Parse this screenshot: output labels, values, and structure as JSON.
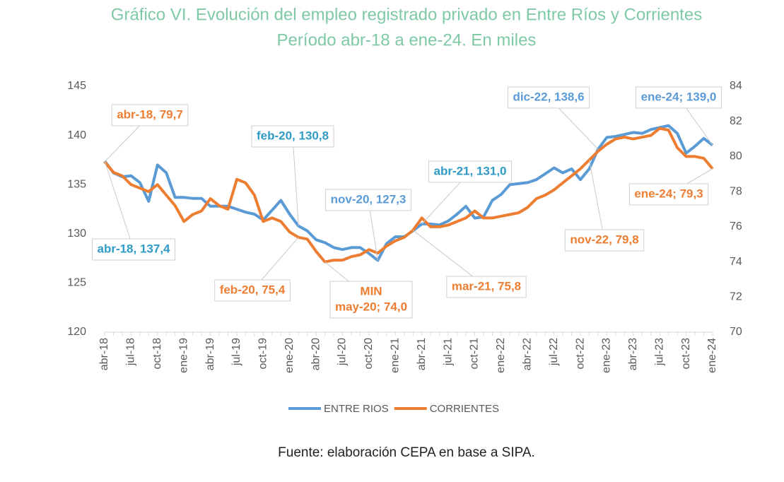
{
  "chart_data": {
    "type": "line",
    "title": "Gráfico VI. Evolución del empleo registrado privado en Entre Ríos y Corrientes",
    "subtitle": "Período abr-18 a ene-24. En miles",
    "source": "Fuente: elaboración CEPA en base a SIPA.",
    "categories": [
      "abr-18",
      null,
      null,
      "jul-18",
      null,
      null,
      "oct-18",
      null,
      null,
      "ene-19",
      null,
      null,
      "abr-19",
      null,
      null,
      "jul-19",
      null,
      null,
      "oct-19",
      null,
      null,
      "ene-20",
      null,
      null,
      "abr-20",
      null,
      null,
      "jul-20",
      null,
      null,
      "oct-20",
      null,
      null,
      "ene-21",
      null,
      null,
      "abr-21",
      null,
      null,
      "jul-21",
      null,
      null,
      "oct-21",
      null,
      null,
      "ene-22",
      null,
      null,
      "abr-22",
      null,
      null,
      "jul-22",
      null,
      null,
      "oct-22",
      null,
      null,
      "ene-23",
      null,
      null,
      "abr-23",
      null,
      null,
      "jul-23",
      null,
      null,
      "oct-23",
      null,
      null,
      "ene-24"
    ],
    "series": [
      {
        "name": "ENTRE RIOS",
        "color": "#5b9bd5",
        "axis": "y",
        "values": [
          137.4,
          136.2,
          135.8,
          135.9,
          135.2,
          133.3,
          137.0,
          136.2,
          133.7,
          133.7,
          133.6,
          133.6,
          132.8,
          132.8,
          132.8,
          132.5,
          132.2,
          132.0,
          131.4,
          132.4,
          133.4,
          132.0,
          130.8,
          130.3,
          129.4,
          129.1,
          128.6,
          128.4,
          128.6,
          128.6,
          128.0,
          127.3,
          129.0,
          129.7,
          129.7,
          130.3,
          131.0,
          131.0,
          130.9,
          131.3,
          132.0,
          132.8,
          131.6,
          131.7,
          133.4,
          134.0,
          135.0,
          135.1,
          135.2,
          135.5,
          136.1,
          136.7,
          136.2,
          136.6,
          135.5,
          136.6,
          138.6,
          139.8,
          139.9,
          140.1,
          140.3,
          140.2,
          140.6,
          140.8,
          141.0,
          140.2,
          138.2,
          138.9,
          139.7,
          139.0
        ]
      },
      {
        "name": "CORRIENTES",
        "color": "#ed7d31",
        "axis": "y2",
        "values": [
          79.7,
          79.1,
          78.9,
          78.4,
          78.2,
          78.0,
          78.4,
          77.8,
          77.2,
          76.3,
          76.7,
          76.9,
          77.6,
          77.2,
          77.0,
          78.7,
          78.5,
          77.8,
          76.3,
          76.5,
          76.3,
          75.7,
          75.4,
          75.3,
          74.6,
          74.0,
          74.1,
          74.1,
          74.3,
          74.4,
          74.7,
          74.5,
          74.9,
          75.2,
          75.4,
          75.8,
          76.5,
          76.0,
          76.0,
          76.1,
          76.3,
          76.5,
          76.9,
          76.5,
          76.5,
          76.6,
          76.7,
          76.8,
          77.1,
          77.6,
          77.8,
          78.1,
          78.5,
          78.9,
          79.3,
          79.8,
          80.3,
          80.7,
          81.0,
          81.1,
          81.0,
          81.1,
          81.2,
          81.6,
          81.5,
          80.5,
          80.0,
          80.0,
          79.9,
          79.3
        ]
      }
    ],
    "ylim": [
      120,
      145
    ],
    "yticks": [
      120,
      125,
      130,
      135,
      140,
      145
    ],
    "y2lim": [
      70,
      84
    ],
    "y2ticks": [
      70,
      72,
      74,
      76,
      78,
      80,
      82,
      84
    ],
    "grid": false,
    "legend": "bottom",
    "annotations": [
      {
        "lines": [
          "abr-18, 79,7"
        ],
        "color": "#ed7d31"
      },
      {
        "lines": [
          "abr-18, 137,4"
        ],
        "color": "#2e9bc6"
      },
      {
        "lines": [
          "feb-20, 130,8"
        ],
        "color": "#2e9bc6"
      },
      {
        "lines": [
          "feb-20, 75,4"
        ],
        "color": "#ed7d31"
      },
      {
        "lines": [
          "MIN",
          "may-20; 74,0"
        ],
        "color": "#ed7d31"
      },
      {
        "lines": [
          "nov-20, 127,3"
        ],
        "color": "#5b9bd5"
      },
      {
        "lines": [
          "abr-21, 131,0"
        ],
        "color": "#2e9bc6"
      },
      {
        "lines": [
          "mar-21, 75,8"
        ],
        "color": "#ed7d31"
      },
      {
        "lines": [
          "dic-22, 138,6"
        ],
        "color": "#5b9bd5"
      },
      {
        "lines": [
          "nov-22, 79,8"
        ],
        "color": "#ed7d31"
      },
      {
        "lines": [
          "ene-24; 139,0"
        ],
        "color": "#5b9bd5"
      },
      {
        "lines": [
          "ene-24; 79,3"
        ],
        "color": "#ed7d31"
      }
    ]
  }
}
